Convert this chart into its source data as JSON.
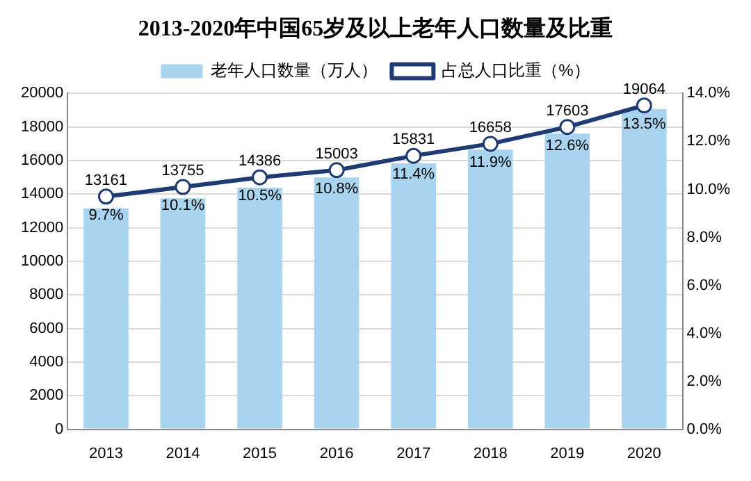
{
  "chart_data": {
    "type": "bar",
    "title": "2013-2020年中国65岁及以上老年人口数量及比重",
    "categories": [
      "2013",
      "2014",
      "2015",
      "2016",
      "2017",
      "2018",
      "2019",
      "2020"
    ],
    "series": [
      {
        "name": "老年人口数量（万人）",
        "color": "#a9d4f0",
        "values": [
          13161,
          13755,
          14386,
          15003,
          15831,
          16658,
          17603,
          19064
        ],
        "value_labels": [
          "13161",
          "13755",
          "14386",
          "15003",
          "15831",
          "16658",
          "17603",
          "19064"
        ]
      },
      {
        "name": "占总人口比重（%）",
        "type": "line",
        "axis": "y2",
        "color": "#1f3b73",
        "values": [
          9.7,
          10.1,
          10.5,
          10.8,
          11.4,
          11.9,
          12.6,
          13.5
        ],
        "value_labels": [
          "9.7%",
          "10.1%",
          "10.5%",
          "10.8%",
          "11.4%",
          "11.9%",
          "12.6%",
          "13.5%"
        ]
      }
    ],
    "ylim": [
      0,
      20000
    ],
    "yticks": [
      0,
      2000,
      4000,
      6000,
      8000,
      10000,
      12000,
      14000,
      16000,
      18000,
      20000
    ],
    "y2lim": [
      0,
      14
    ],
    "y2ticks": [
      {
        "value": 0,
        "label": "0.0%"
      },
      {
        "value": 2,
        "label": "2.0%"
      },
      {
        "value": 4,
        "label": "4.0%"
      },
      {
        "value": 6,
        "label": "6.0%"
      },
      {
        "value": 8,
        "label": "8.0%"
      },
      {
        "value": 10,
        "label": "10.0%"
      },
      {
        "value": 12,
        "label": "12.0%"
      },
      {
        "value": 14,
        "label": "14.0%"
      }
    ],
    "grid": "y",
    "legend": "top",
    "marker": "circle",
    "line_style": "solid"
  }
}
